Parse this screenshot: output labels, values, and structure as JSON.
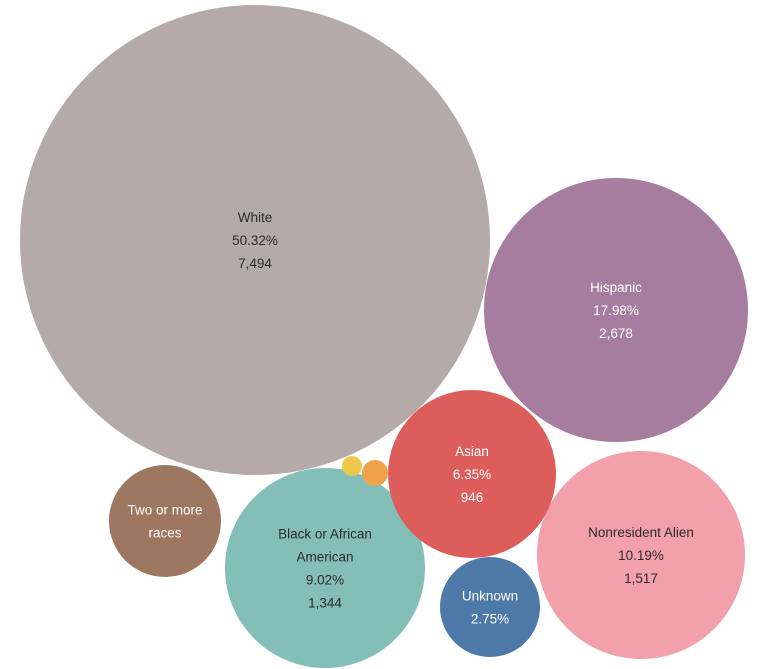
{
  "chart_data": {
    "type": "bubble",
    "items": [
      {
        "category": "White",
        "percent": "50.32%",
        "count": "7,494",
        "value": 7494,
        "color": "#b4aba9",
        "text_color": "#2b2b2b"
      },
      {
        "category": "Hispanic",
        "percent": "17.98%",
        "count": "2,678",
        "value": 2678,
        "color": "#a67d9f",
        "text_color": "#ffffff"
      },
      {
        "category": "Nonresident Alien",
        "percent": "10.19%",
        "count": "1,517",
        "value": 1517,
        "color": "#f2a1ab",
        "text_color": "#2b2b2b"
      },
      {
        "category": "Black or African American",
        "percent": "9.02%",
        "count": "1,344",
        "value": 1344,
        "color": "#84bfb7",
        "text_color": "#2b2b2b"
      },
      {
        "category": "Asian",
        "percent": "6.35%",
        "count": "946",
        "value": 946,
        "color": "#dd5d5a",
        "text_color": "#ffffff"
      },
      {
        "category": "Two or more races",
        "percent": "",
        "count": "",
        "value": null,
        "color": "#9e7761",
        "text_color": "#ffffff"
      },
      {
        "category": "Unknown",
        "percent": "2.75%",
        "count": "",
        "value": null,
        "color": "#4d79a9",
        "text_color": "#ffffff"
      },
      {
        "category": "",
        "percent": "",
        "count": "",
        "value": null,
        "color": "#f0a24b",
        "text_color": "#ffffff"
      },
      {
        "category": "",
        "percent": "",
        "count": "",
        "value": null,
        "color": "#eec84d",
        "text_color": "#ffffff"
      }
    ]
  }
}
